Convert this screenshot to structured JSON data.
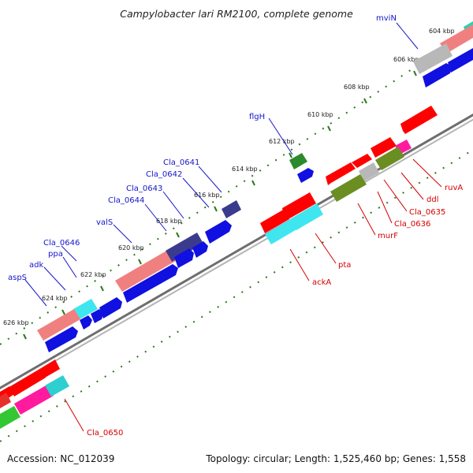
{
  "title": "Campylobacter lari RM2100, complete genome",
  "footer": {
    "accession": "Accession: NC_012039",
    "topology": "Topology: circular; Length: 1,525,460 bp; Genes: 1,558"
  },
  "colors": {
    "blue_label": "#1515c8",
    "red_label": "#d40000",
    "backbone": "#7d7d7d",
    "tick": "#2a7a1a"
  },
  "ticks": [
    "604 kbp",
    "606 kbp",
    "608 kbp",
    "610 kbp",
    "612 kbp",
    "614 kbp",
    "616 kbp",
    "618 kbp",
    "620 kbp",
    "622 kbp",
    "624 kbp",
    "626 kbp"
  ],
  "top_strand_genes": [
    "mviN",
    "flgH",
    "Cla_0641",
    "Cla_0642",
    "Cla_0643",
    "Cla_0644",
    "valS",
    "Cla_0646",
    "ppa",
    "adk",
    "aspS"
  ],
  "bottom_strand_genes": [
    "ruvA",
    "ddl",
    "Cla_0635",
    "Cla_0636",
    "murF",
    "pta",
    "ackA",
    "Cla_0650"
  ]
}
